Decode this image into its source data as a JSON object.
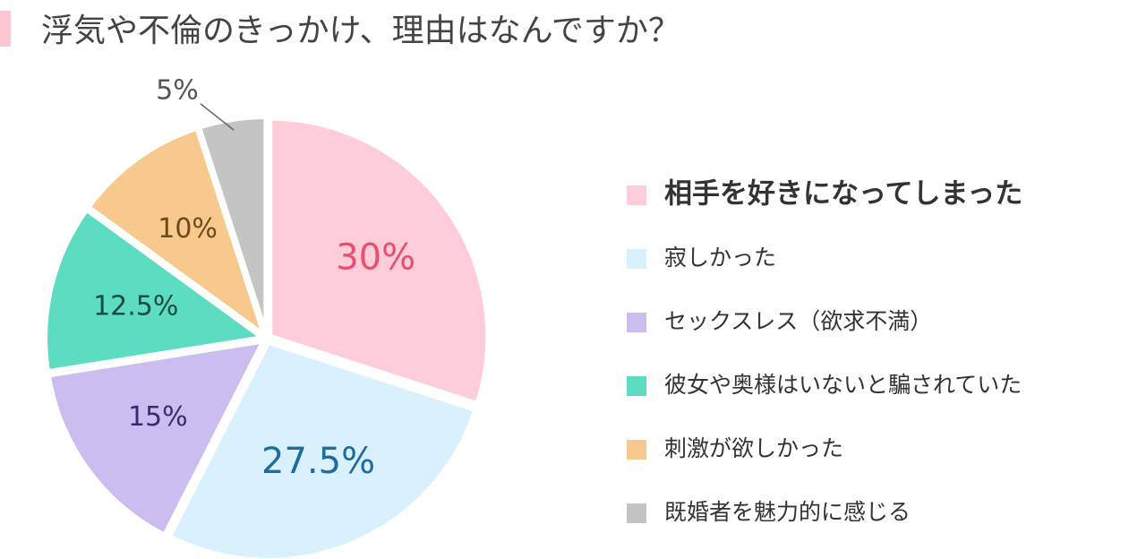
{
  "chart_data": {
    "type": "pie",
    "title": "浮気や不倫のきっかけ、理由はなんですか？",
    "categories": [
      "相手を好きになってしまった",
      "寂しかった",
      "セックスレス（欲求不満）",
      "彼女や奥様はいないと騙されていた",
      "刺激が欲しかった",
      "既婚者を魅力的に感じる"
    ],
    "values": [
      30,
      27.5,
      15,
      12.5,
      10,
      5
    ],
    "value_labels": [
      "30%",
      "27.5%",
      "15%",
      "12.5%",
      "10%",
      "5%"
    ],
    "colors": [
      "#ffccda",
      "#d8f1fc",
      "#cbbdef",
      "#5cdcc1",
      "#f7c98c",
      "#c4c4c4"
    ],
    "label_colors": [
      "#e8506f",
      "#1f6d9e",
      "#3b2b6e",
      "#1f4a40",
      "#6a4a1f",
      "#555555"
    ]
  }
}
